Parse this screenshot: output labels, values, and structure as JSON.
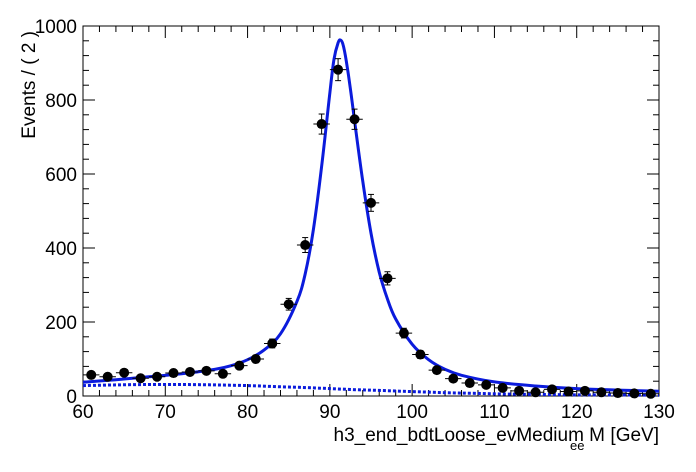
{
  "chart_data": {
    "type": "scatter",
    "title": "",
    "xlabel": "h3_end_bdtLoose_evMedium  M",
    "xlabel_subscript": "ee",
    "xlabel_unit": "[GeV]",
    "ylabel": "Events / ( 2 )",
    "xlim": [
      60,
      130
    ],
    "ylim": [
      0,
      1000
    ],
    "x_ticks": [
      "60",
      "70",
      "80",
      "90",
      "100",
      "110",
      "120",
      "130"
    ],
    "y_ticks": [
      "0",
      "200",
      "400",
      "600",
      "800",
      "1000"
    ],
    "grid": false,
    "legend": "none",
    "bin_width": 2,
    "series": [
      {
        "kind": "data-points-with-errors",
        "color": "#000000",
        "x": [
          61,
          63,
          65,
          67,
          69,
          71,
          73,
          75,
          77,
          79,
          81,
          83,
          85,
          87,
          89,
          91,
          93,
          95,
          97,
          99,
          101,
          103,
          105,
          107,
          109,
          111,
          113,
          115,
          117,
          119,
          121,
          123,
          125,
          127,
          129
        ],
        "y": [
          57,
          52,
          63,
          48,
          52,
          62,
          65,
          68,
          60,
          82,
          100,
          142,
          248,
          408,
          735,
          882,
          748,
          522,
          318,
          170,
          112,
          70,
          47,
          35,
          30,
          22,
          14,
          10,
          18,
          12,
          14,
          10,
          8,
          7,
          6
        ]
      },
      {
        "kind": "fit-total",
        "style": "solid",
        "color": "#0b1bdc",
        "x": [
          60,
          64,
          68,
          72,
          76,
          78,
          80,
          82,
          84,
          86,
          87,
          88,
          89,
          90,
          90.5,
          91,
          91.3,
          91.6,
          92,
          92.5,
          93,
          94,
          95,
          96,
          97,
          98,
          100,
          102,
          104,
          106,
          110,
          115,
          120,
          125,
          130
        ],
        "y": [
          37,
          44,
          52,
          60,
          72,
          82,
          98,
          124,
          168,
          255,
          330,
          450,
          620,
          820,
          910,
          955,
          962,
          950,
          905,
          830,
          745,
          580,
          440,
          335,
          262,
          208,
          140,
          98,
          72,
          56,
          38,
          27,
          20,
          16,
          13
        ]
      },
      {
        "kind": "fit-background",
        "style": "dotted",
        "color": "#0b1bdc",
        "x": [
          60,
          64,
          68,
          72,
          76,
          80,
          84,
          88,
          92,
          96,
          100,
          104,
          108,
          112,
          116,
          120,
          125,
          130
        ],
        "y": [
          28,
          30,
          31,
          31,
          30,
          28,
          25,
          22,
          18,
          15,
          12,
          9,
          7,
          5,
          4,
          3,
          3,
          2
        ]
      }
    ]
  }
}
